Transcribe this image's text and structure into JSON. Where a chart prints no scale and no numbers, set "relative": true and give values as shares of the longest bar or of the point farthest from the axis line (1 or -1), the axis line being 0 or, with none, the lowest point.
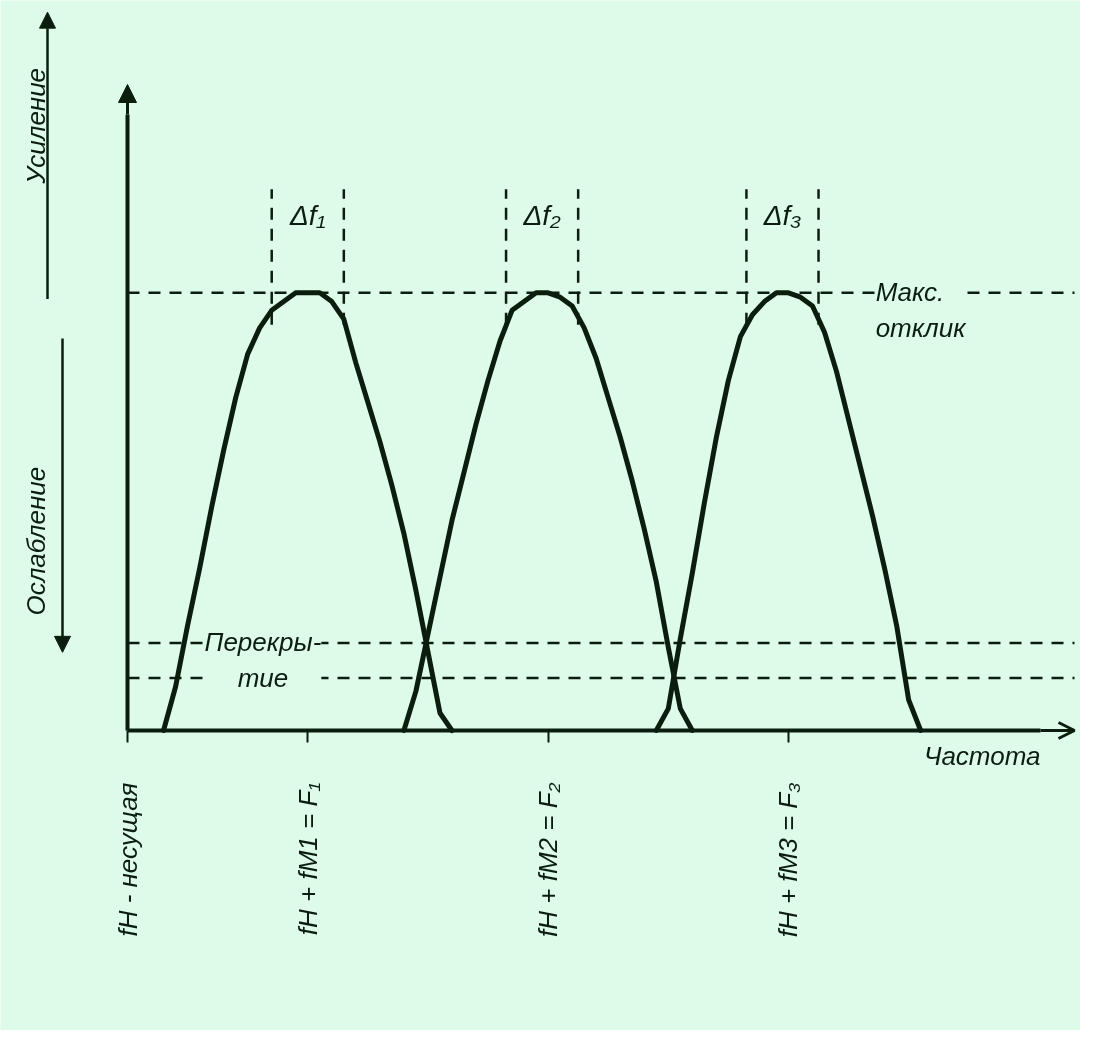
{
  "chart_data": {
    "type": "line",
    "relative": true,
    "xlabel": "Частота",
    "categories": [
      "fН - несущая",
      null,
      null,
      null,
      null,
      null,
      null,
      null,
      null,
      null,
      null,
      null,
      null,
      null,
      null,
      "fН + fМ1 = F₁",
      null,
      null,
      null,
      null,
      null,
      null,
      null,
      null,
      null,
      null,
      null,
      null,
      null,
      null,
      null,
      null,
      null,
      null,
      null,
      "fН + fМ2 = F₂",
      null,
      null,
      null,
      null,
      null,
      null,
      null,
      null,
      null,
      null,
      null,
      null,
      null,
      null,
      null,
      null,
      null,
      null,
      null,
      "fН + fМ3 = F₃",
      null,
      null,
      null,
      null,
      null,
      null,
      null,
      null,
      null,
      null,
      null,
      null,
      null,
      null,
      null,
      null,
      null,
      null,
      null,
      null,
      null,
      null,
      null
    ],
    "series": [
      {
        "color": "#0b1e0e",
        "values": [
          null,
          null,
          null,
          0,
          0.1,
          0.24,
          0.37,
          0.51,
          0.64,
          0.76,
          0.86,
          0.92,
          0.96,
          0.98,
          1,
          1,
          1,
          0.98,
          0.94,
          0.84,
          0.75,
          0.66,
          0.56,
          0.45,
          0.32,
          0.18,
          0.04,
          0,
          null,
          null,
          null,
          null,
          null,
          null,
          null,
          null,
          null,
          null,
          null,
          null,
          null,
          null,
          null,
          null,
          null,
          null,
          null,
          null,
          null,
          null,
          null,
          null,
          null,
          null,
          null,
          null,
          null,
          null,
          null,
          null,
          null,
          null,
          null,
          null,
          null,
          null,
          null,
          null,
          null,
          null,
          null,
          null,
          null,
          null,
          null,
          null,
          null,
          null,
          null
        ]
      },
      {
        "color": "#0b1e0e",
        "values": [
          null,
          null,
          null,
          null,
          null,
          null,
          null,
          null,
          null,
          null,
          null,
          null,
          null,
          null,
          null,
          null,
          null,
          null,
          null,
          null,
          null,
          null,
          null,
          0,
          0.09,
          0.22,
          0.35,
          0.48,
          0.59,
          0.7,
          0.8,
          0.89,
          0.96,
          0.98,
          1,
          1,
          0.99,
          0.97,
          0.92,
          0.85,
          0.76,
          0.67,
          0.57,
          0.46,
          0.34,
          0.19,
          0.05,
          0,
          null,
          null,
          null,
          null,
          null,
          null,
          null,
          null,
          null,
          null,
          null,
          null,
          null,
          null,
          null,
          null,
          null,
          null,
          null,
          null,
          null,
          null,
          null,
          null,
          null,
          null,
          null,
          null,
          null,
          null,
          null
        ]
      },
      {
        "color": "#0b1e0e",
        "values": [
          null,
          null,
          null,
          null,
          null,
          null,
          null,
          null,
          null,
          null,
          null,
          null,
          null,
          null,
          null,
          null,
          null,
          null,
          null,
          null,
          null,
          null,
          null,
          null,
          null,
          null,
          null,
          null,
          null,
          null,
          null,
          null,
          null,
          null,
          null,
          null,
          null,
          null,
          null,
          null,
          null,
          null,
          null,
          null,
          0,
          0.05,
          0.21,
          0.36,
          0.52,
          0.67,
          0.8,
          0.9,
          0.95,
          0.98,
          1,
          1,
          0.99,
          0.97,
          0.91,
          0.82,
          0.71,
          0.6,
          0.49,
          0.37,
          0.24,
          0.07,
          0,
          null,
          null,
          null,
          null,
          null,
          null,
          null,
          null,
          null,
          null,
          null,
          null
        ]
      }
    ],
    "ref_lines": [
      {
        "axis": "y",
        "value": 1,
        "label": "Макс.\nотклик",
        "line_style": "dashed"
      },
      {
        "axis": "y",
        "value": 0.2,
        "label": "Перекры-\nтие",
        "line_style": "dashed"
      },
      {
        "axis": "y",
        "value": 0.12,
        "line_style": "dashed"
      }
    ],
    "annotations": [
      "Усиление",
      "Ослабление",
      "Δf₁",
      "Δf₂",
      "Δf₃"
    ],
    "grid": false,
    "line_style": "solid"
  }
}
